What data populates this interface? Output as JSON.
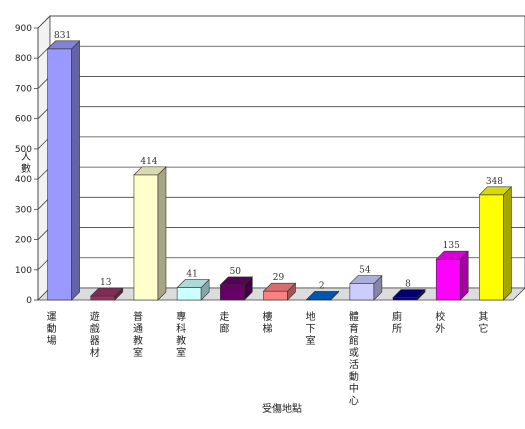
{
  "chart_data": {
    "type": "bar",
    "style": "3d-column",
    "xlabel": "受傷地點",
    "ylabel": "人數",
    "ylim": [
      0,
      900
    ],
    "yticks": [
      0,
      100,
      200,
      300,
      400,
      500,
      600,
      700,
      800,
      900
    ],
    "grid": true,
    "legend": "none",
    "categories": [
      "運動場",
      "遊戲器材",
      "普通教室",
      "專科教室",
      "走廊",
      "樓梯",
      "地下室",
      "體育館或活動中心",
      "廁所",
      "校外",
      "其它"
    ],
    "values": [
      831,
      13,
      414,
      41,
      50,
      29,
      2,
      54,
      8,
      135,
      348
    ],
    "colors": [
      "#9999ff",
      "#993366",
      "#ffffcc",
      "#ccffff",
      "#660066",
      "#ff8080",
      "#0066cc",
      "#ccccff",
      "#000080",
      "#ff00ff",
      "#ffff00"
    ]
  }
}
